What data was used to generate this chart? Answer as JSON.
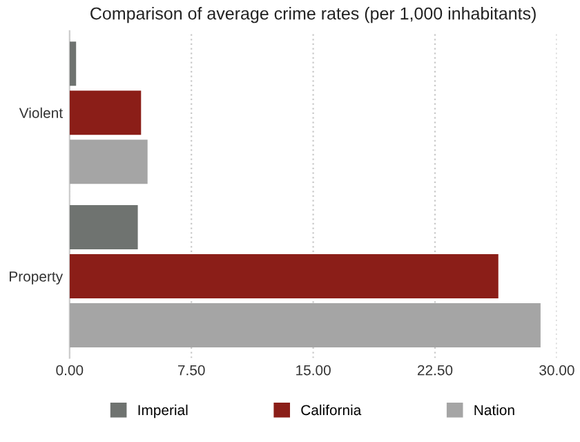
{
  "chart_data": {
    "type": "bar",
    "orientation": "horizontal",
    "title": "Comparison of average crime rates (per 1,000 inhabitants)",
    "categories": [
      "Violent",
      "Property"
    ],
    "series": [
      {
        "name": "Imperial",
        "color": "#6f7370",
        "values": [
          0.4,
          4.2
        ]
      },
      {
        "name": "California",
        "color": "#8b1e18",
        "values": [
          4.4,
          26.4
        ]
      },
      {
        "name": "Nation",
        "color": "#a5a5a5",
        "values": [
          4.8,
          29.0
        ]
      }
    ],
    "xlim": [
      0,
      30
    ],
    "xticks": [
      {
        "value": 0,
        "label": "0.00"
      },
      {
        "value": 7.5,
        "label": "7.50"
      },
      {
        "value": 15,
        "label": "15.00"
      },
      {
        "value": 22.5,
        "label": "22.50"
      },
      {
        "value": 30,
        "label": "30.00"
      }
    ],
    "grid": "x",
    "legend": "bottom"
  }
}
